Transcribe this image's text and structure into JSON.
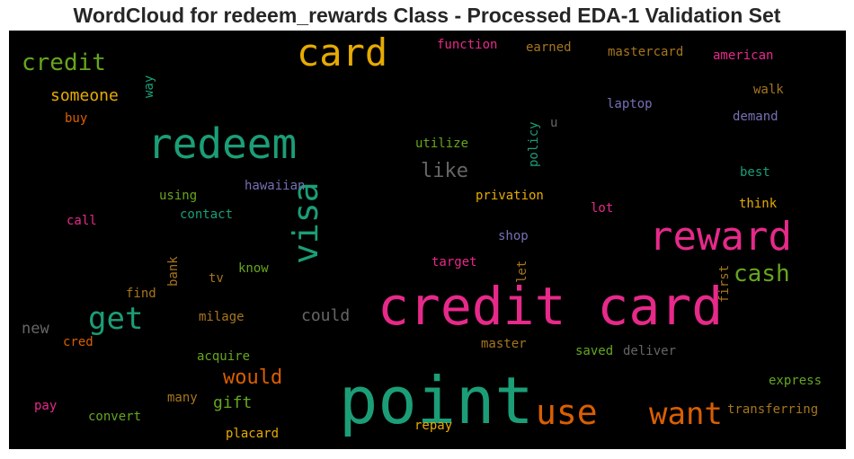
{
  "chart_data": {
    "type": "wordcloud",
    "title": "WordCloud for redeem_rewards Class - Processed EDA-1 Validation Set",
    "background": "#000000",
    "words": [
      {
        "text": "point",
        "color": "#1b9e77"
      },
      {
        "text": "credit card",
        "color": "#e7298a"
      },
      {
        "text": "redeem",
        "color": "#1b9e77"
      },
      {
        "text": "reward",
        "color": "#e7298a"
      },
      {
        "text": "card",
        "color": "#e6ab02"
      },
      {
        "text": "visa",
        "color": "#1b9e77"
      },
      {
        "text": "use",
        "color": "#d95f02"
      },
      {
        "text": "want",
        "color": "#d95f02"
      },
      {
        "text": "get",
        "color": "#1b9e77"
      },
      {
        "text": "credit",
        "color": "#66a61e"
      },
      {
        "text": "cash",
        "color": "#66a61e"
      },
      {
        "text": "would",
        "color": "#d95f02"
      },
      {
        "text": "like",
        "color": "#666666"
      },
      {
        "text": "someone",
        "color": "#e6ab02"
      },
      {
        "text": "could",
        "color": "#666666"
      },
      {
        "text": "gift",
        "color": "#66a61e"
      },
      {
        "text": "new",
        "color": "#666666"
      },
      {
        "text": "function",
        "color": "#e7298a"
      },
      {
        "text": "earned",
        "color": "#a6761d"
      },
      {
        "text": "mastercard",
        "color": "#a6761d"
      },
      {
        "text": "american",
        "color": "#e7298a"
      },
      {
        "text": "walk",
        "color": "#a6761d"
      },
      {
        "text": "laptop",
        "color": "#7570b3"
      },
      {
        "text": "demand",
        "color": "#7570b3"
      },
      {
        "text": "way",
        "color": "#1b9e77"
      },
      {
        "text": "buy",
        "color": "#d95f02"
      },
      {
        "text": "utilize",
        "color": "#66a61e"
      },
      {
        "text": "policy",
        "color": "#1b9e77"
      },
      {
        "text": "u",
        "color": "#666666"
      },
      {
        "text": "best",
        "color": "#1b9e77"
      },
      {
        "text": "hawaiian",
        "color": "#7570b3"
      },
      {
        "text": "using",
        "color": "#66a61e"
      },
      {
        "text": "privation",
        "color": "#e6ab02"
      },
      {
        "text": "think",
        "color": "#e6ab02"
      },
      {
        "text": "contact",
        "color": "#1b9e77"
      },
      {
        "text": "lot",
        "color": "#e7298a"
      },
      {
        "text": "call",
        "color": "#e7298a"
      },
      {
        "text": "shop",
        "color": "#7570b3"
      },
      {
        "text": "target",
        "color": "#e7298a"
      },
      {
        "text": "know",
        "color": "#66a61e"
      },
      {
        "text": "bank",
        "color": "#a6761d"
      },
      {
        "text": "tv",
        "color": "#a6761d"
      },
      {
        "text": "let",
        "color": "#a6761d"
      },
      {
        "text": "first",
        "color": "#a6761d"
      },
      {
        "text": "find",
        "color": "#a6761d"
      },
      {
        "text": "milage",
        "color": "#a6761d"
      },
      {
        "text": "cred",
        "color": "#d95f02"
      },
      {
        "text": "master",
        "color": "#a6761d"
      },
      {
        "text": "acquire",
        "color": "#66a61e"
      },
      {
        "text": "saved",
        "color": "#66a61e"
      },
      {
        "text": "deliver",
        "color": "#666666"
      },
      {
        "text": "express",
        "color": "#66a61e"
      },
      {
        "text": "many",
        "color": "#a6761d"
      },
      {
        "text": "pay",
        "color": "#e7298a"
      },
      {
        "text": "convert",
        "color": "#66a61e"
      },
      {
        "text": "transferring",
        "color": "#a6761d"
      },
      {
        "text": "repay",
        "color": "#e6ab02"
      },
      {
        "text": "placard",
        "color": "#e6ab02"
      }
    ]
  }
}
